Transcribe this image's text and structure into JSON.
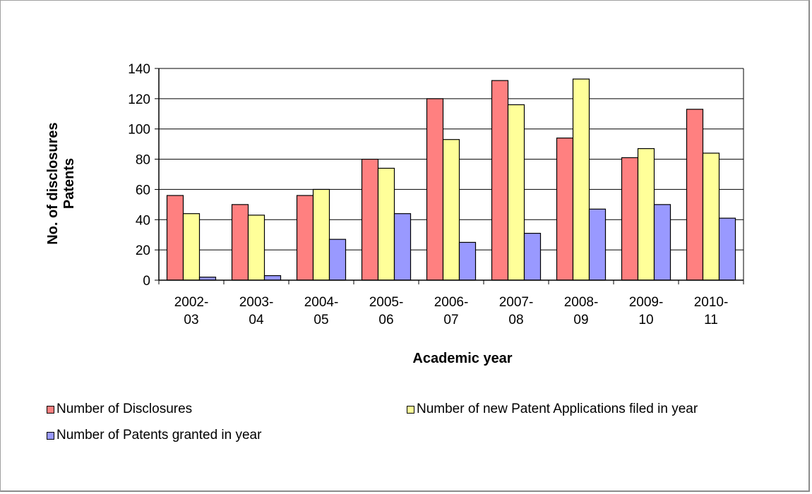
{
  "chart_data": {
    "type": "bar",
    "categories": [
      "2002-03",
      "2003-04",
      "2004-05",
      "2005-06",
      "2006-07",
      "2007-08",
      "2008-09",
      "2009-10",
      "2010-11"
    ],
    "category_lines": [
      [
        "2002-",
        "03"
      ],
      [
        "2003-",
        "04"
      ],
      [
        "2004-",
        "05"
      ],
      [
        "2005-",
        "06"
      ],
      [
        "2006-",
        "07"
      ],
      [
        "2007-",
        "08"
      ],
      [
        "2008-",
        "09"
      ],
      [
        "2009-",
        "10"
      ],
      [
        "2010-",
        "11"
      ]
    ],
    "series": [
      {
        "name": "Number of Disclosures",
        "color": "#ff8080",
        "values": [
          56,
          50,
          56,
          80,
          120,
          132,
          94,
          81,
          113
        ]
      },
      {
        "name": "Number of new Patent Applications filed in year",
        "color": "#ffff99",
        "values": [
          44,
          43,
          60,
          74,
          93,
          116,
          133,
          87,
          84
        ]
      },
      {
        "name": "Number of Patents granted in year",
        "color": "#9999ff",
        "values": [
          2,
          3,
          27,
          44,
          25,
          31,
          47,
          50,
          41
        ]
      }
    ],
    "xlabel": "Academic year",
    "ylabel_lines": [
      "No. of disclosures",
      "Patents"
    ],
    "ylim": [
      0,
      140
    ],
    "yticks": [
      0,
      20,
      40,
      60,
      80,
      100,
      120,
      140
    ],
    "grid": true,
    "legend_position": "bottom"
  }
}
